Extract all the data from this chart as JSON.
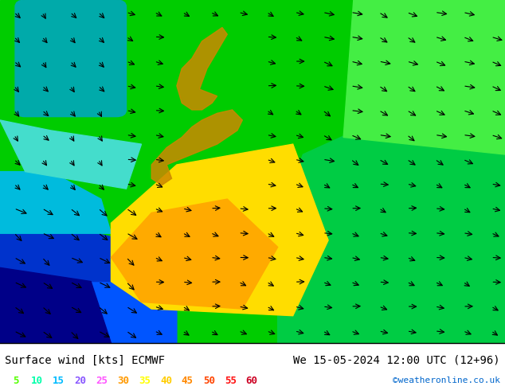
{
  "title_left": "Surface wind [kts] ECMWF",
  "title_right": "We 15-05-2024 12:00 UTC (12+96)",
  "credit": "©weatheronline.co.uk",
  "colorbar_values": [
    5,
    10,
    15,
    20,
    25,
    30,
    35,
    40,
    45,
    50,
    55,
    60
  ],
  "colorbar_colors": [
    "#00ff00",
    "#00ee00",
    "#00cc88",
    "#00aaff",
    "#aa00ff",
    "#ff44ff",
    "#ff8800",
    "#ffff00",
    "#ffaa00",
    "#ff6600",
    "#ff0000",
    "#cc0000"
  ],
  "legend_colors": [
    "#55ff00",
    "#00ffaa",
    "#00aaff",
    "#aa55ff",
    "#ff55ff",
    "#ff9900",
    "#ffff00",
    "#ffbb00",
    "#ff7700",
    "#ff3300",
    "#ff0000",
    "#cc0000"
  ],
  "bg_color": "#ffffff",
  "map_bg": "#00cc00",
  "land_color": "#ffcc00",
  "water_colors": {
    "deep_blue": "#0000ff",
    "medium_blue": "#0066ff",
    "cyan": "#00ffff",
    "light_cyan": "#88ffff",
    "teal": "#00ccaa",
    "green": "#00ff00",
    "light_green": "#88ff44",
    "yellow": "#ffff00",
    "orange": "#ffaa00"
  },
  "font_size_title": 10,
  "font_size_legend": 9,
  "font_size_credit": 8
}
